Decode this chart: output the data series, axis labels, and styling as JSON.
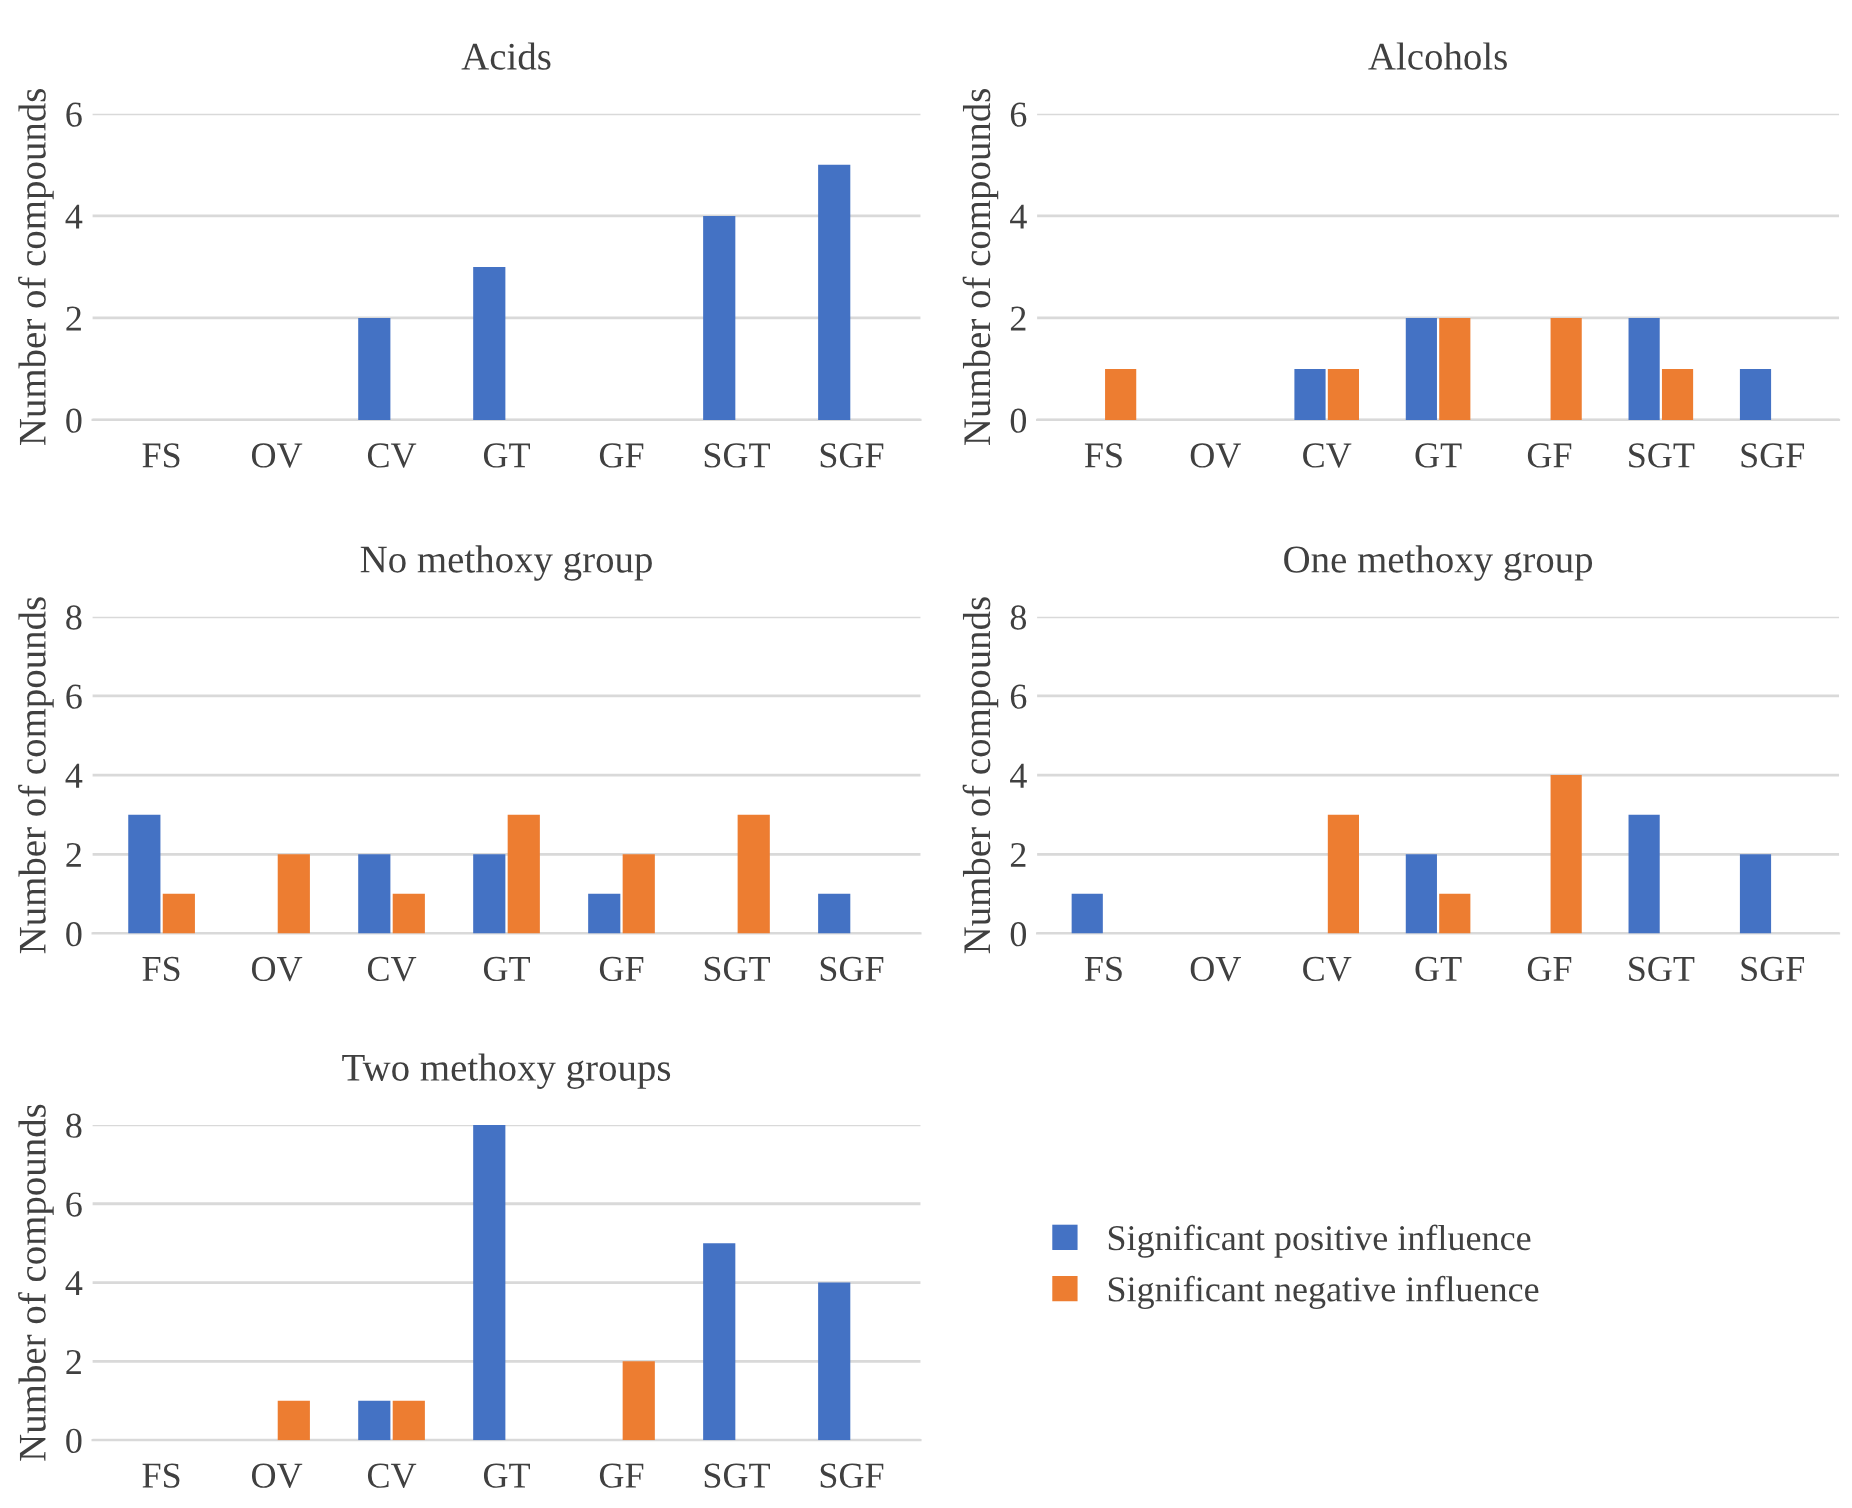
{
  "chart_data": [
    {
      "type": "bar",
      "title": "Acids",
      "ylabel": "Number of compounds",
      "categories": [
        "FS",
        "OV",
        "CV",
        "GT",
        "GF",
        "SGT",
        "SGF"
      ],
      "ylim": [
        0,
        6
      ],
      "yticks": [
        0,
        2,
        4,
        6
      ],
      "grid": "y",
      "series": [
        {
          "color": "#4472c4",
          "values": [
            0,
            0,
            2,
            3,
            0,
            4,
            5
          ]
        },
        {
          "color": "#ed7d31",
          "values": [
            0,
            0,
            0,
            0,
            0,
            0,
            0
          ]
        }
      ]
    },
    {
      "type": "bar",
      "title": "Alcohols",
      "ylabel": "Number of compounds",
      "categories": [
        "FS",
        "OV",
        "CV",
        "GT",
        "GF",
        "SGT",
        "SGF"
      ],
      "ylim": [
        0,
        6
      ],
      "yticks": [
        0,
        2,
        4,
        6
      ],
      "grid": "y",
      "series": [
        {
          "color": "#4472c4",
          "values": [
            0,
            0,
            1,
            2,
            0,
            2,
            1
          ]
        },
        {
          "color": "#ed7d31",
          "values": [
            1,
            0,
            1,
            2,
            2,
            1,
            0
          ]
        }
      ]
    },
    {
      "type": "bar",
      "title": "No methoxy group",
      "ylabel": "Number of compounds",
      "categories": [
        "FS",
        "OV",
        "CV",
        "GT",
        "GF",
        "SGT",
        "SGF"
      ],
      "ylim": [
        0,
        8
      ],
      "yticks": [
        0,
        2,
        4,
        6,
        8
      ],
      "grid": "y",
      "series": [
        {
          "color": "#4472c4",
          "values": [
            3,
            0,
            2,
            2,
            1,
            0,
            1
          ]
        },
        {
          "color": "#ed7d31",
          "values": [
            1,
            2,
            1,
            3,
            2,
            3,
            0
          ]
        }
      ]
    },
    {
      "type": "bar",
      "title": "One methoxy group",
      "ylabel": "Number of compounds",
      "categories": [
        "FS",
        "OV",
        "CV",
        "GT",
        "GF",
        "SGT",
        "SGF"
      ],
      "ylim": [
        0,
        8
      ],
      "yticks": [
        0,
        2,
        4,
        6,
        8
      ],
      "grid": "y",
      "series": [
        {
          "color": "#4472c4",
          "values": [
            1,
            0,
            0,
            2,
            0,
            3,
            2
          ]
        },
        {
          "color": "#ed7d31",
          "values": [
            0,
            0,
            3,
            1,
            4,
            0,
            0
          ]
        }
      ]
    },
    {
      "type": "bar",
      "title": "Two methoxy groups",
      "ylabel": "Number of compounds",
      "categories": [
        "FS",
        "OV",
        "CV",
        "GT",
        "GF",
        "SGT",
        "SGF"
      ],
      "ylim": [
        0,
        8
      ],
      "yticks": [
        0,
        2,
        4,
        6,
        8
      ],
      "grid": "y",
      "legend": "right",
      "series": [
        {
          "name": "Significant positive influence",
          "color": "#4472c4",
          "values": [
            0,
            0,
            1,
            8,
            0,
            5,
            4
          ]
        },
        {
          "name": "Significant negative influence",
          "color": "#ed7d31",
          "values": [
            0,
            1,
            1,
            0,
            2,
            0,
            0
          ]
        }
      ]
    }
  ]
}
